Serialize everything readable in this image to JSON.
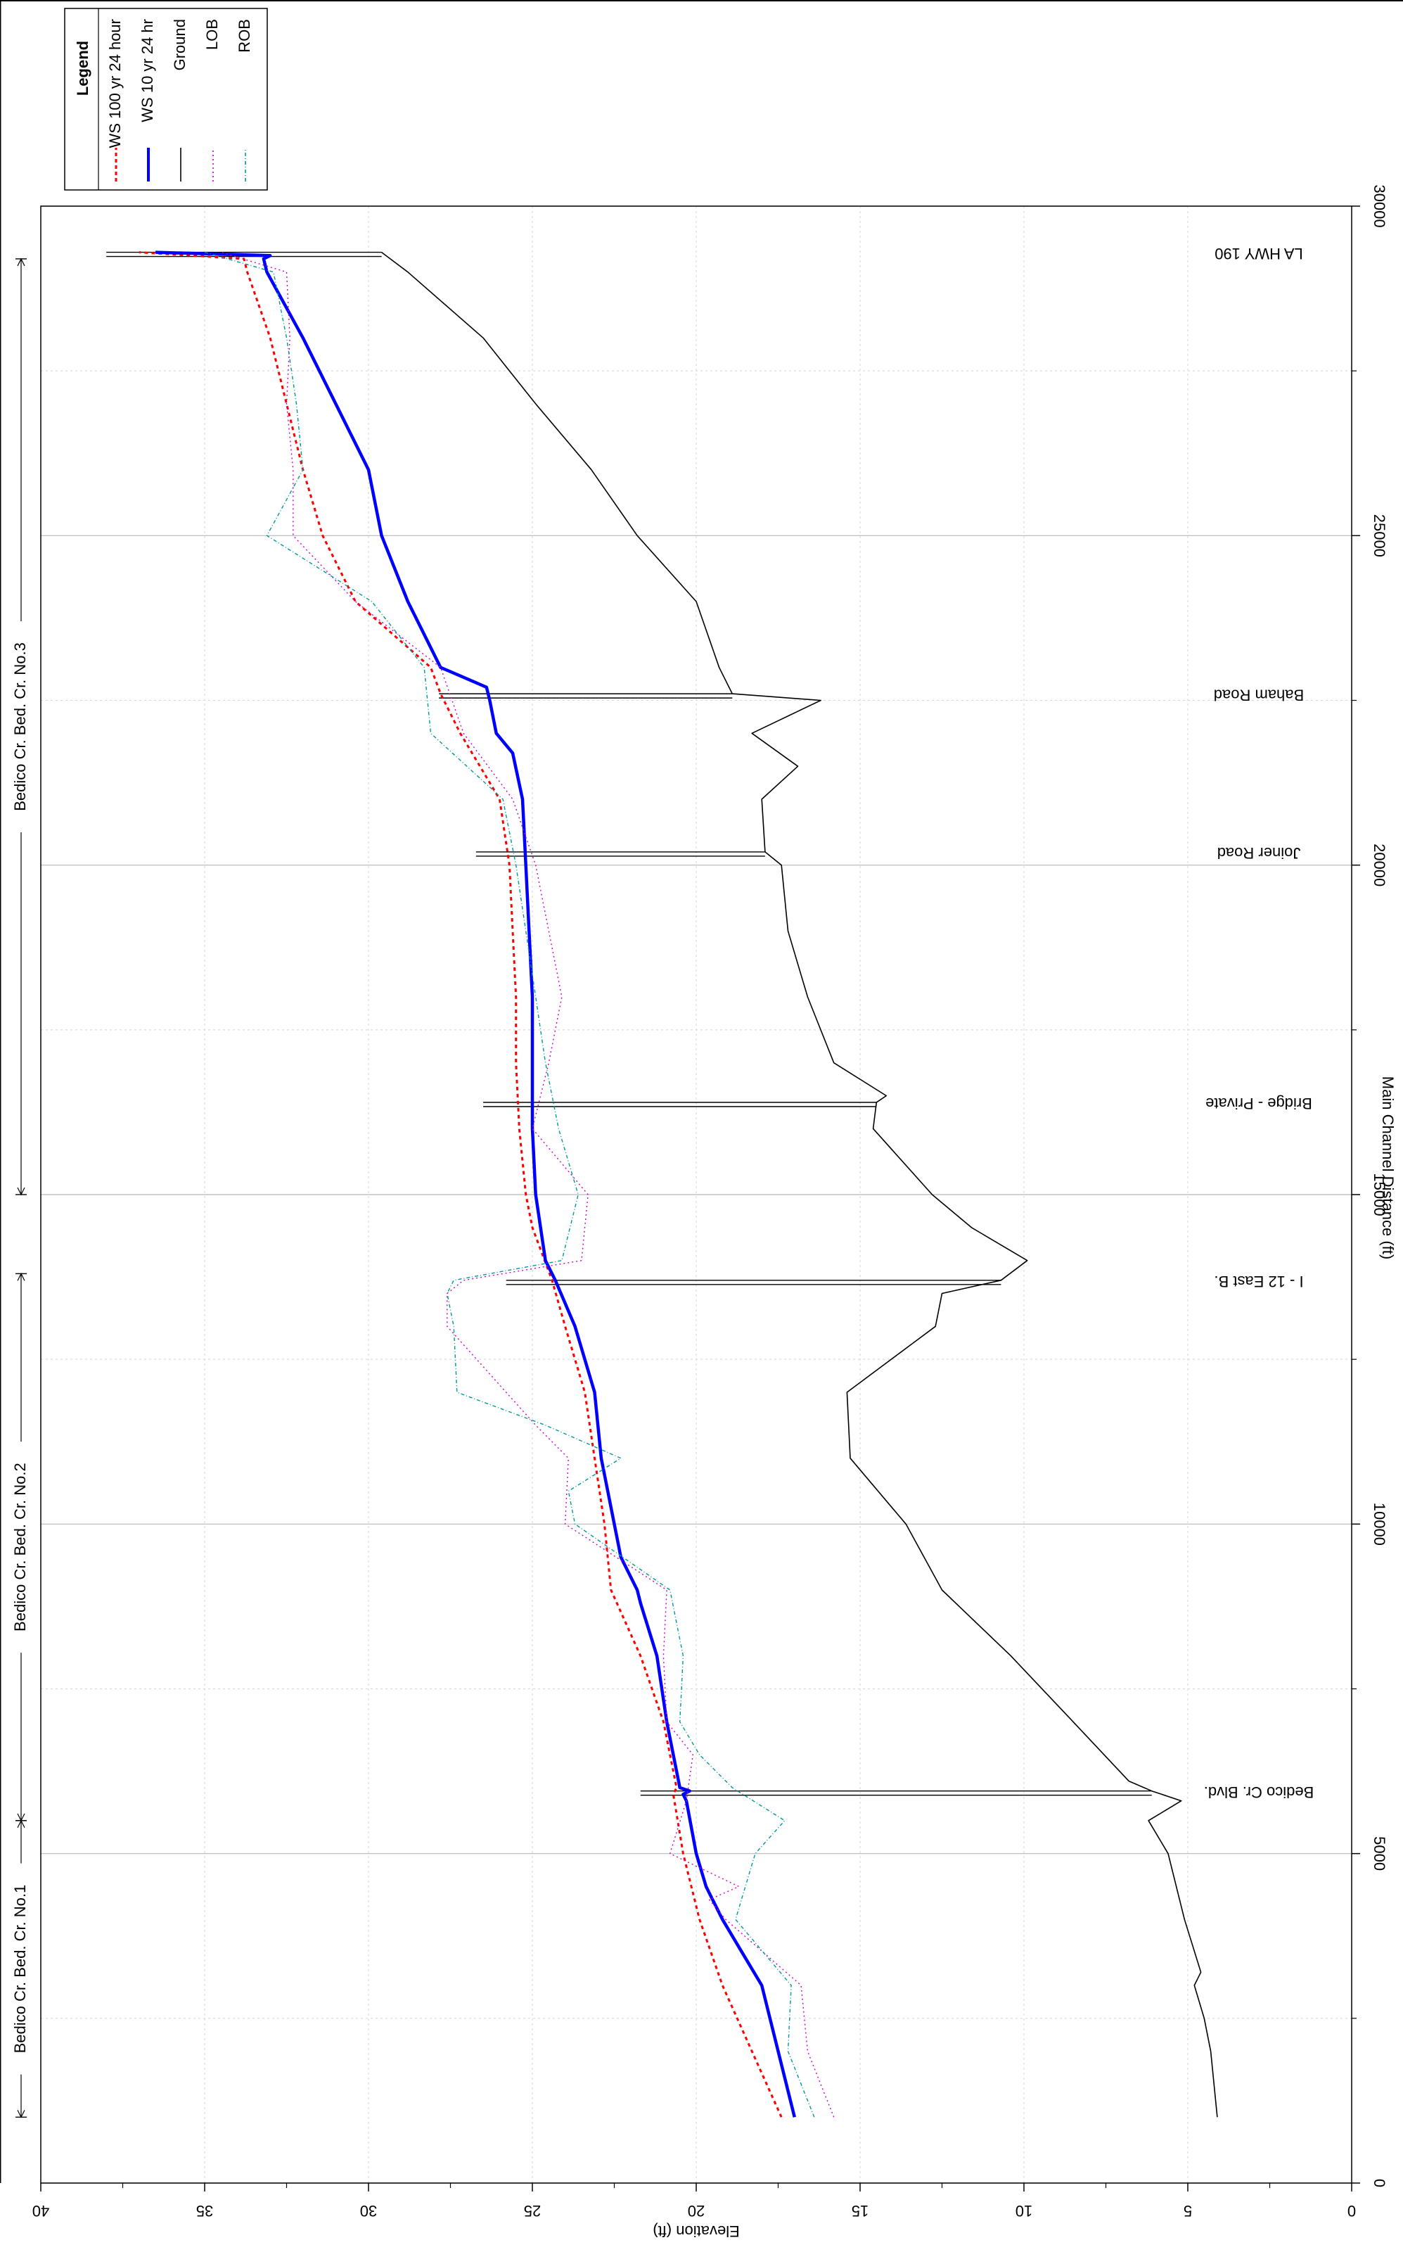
{
  "chart_data": {
    "type": "line",
    "xlabel": "Main Channel Distance (ft)",
    "ylabel": "Elevation (ft)",
    "xlim": [
      0,
      30000
    ],
    "ylim": [
      0,
      40
    ],
    "x_ticks": [
      "0",
      "5000",
      "10000",
      "15000",
      "20000",
      "25000",
      "30000"
    ],
    "y_ticks": [
      "0",
      "5",
      "10",
      "15",
      "20",
      "25",
      "30",
      "35",
      "40"
    ],
    "grid": true,
    "legend_placement": "top-right",
    "legend": {
      "title": "Legend",
      "entries": [
        "WS 100 yr 24 hour",
        "WS 10 yr 24 hr",
        "Ground",
        "LOB",
        "ROB"
      ]
    },
    "reaches": [
      {
        "name": "Bedico Cr. Bed. Cr. No.1",
        "x_start": 1000,
        "x_end": 5500
      },
      {
        "name": "Bedico Cr. Bed. Cr. No.2",
        "x_start": 5500,
        "x_end": 13800
      },
      {
        "name": "Bedico Cr. Bed. Cr. No.3",
        "x_start": 15000,
        "x_end": 29200
      }
    ],
    "structures": [
      {
        "label": "Bedico Cr. Blvd.",
        "x": 5950
      },
      {
        "label": "I - 12 East B.",
        "x": 13700
      },
      {
        "label": "Bridge - Private",
        "x": 16400
      },
      {
        "label": "Joiner Road",
        "x": 20200
      },
      {
        "label": "Baham Road",
        "x": 22600
      },
      {
        "label": "LA HWY 190",
        "x": 29300
      }
    ],
    "series": [
      {
        "name": "WS 100 yr 24 hour",
        "color": "#ff0000",
        "style": "dotted",
        "x": [
          1000,
          2000,
          3000,
          4000,
          5000,
          5900,
          6000,
          7000,
          8000,
          9000,
          10000,
          11000,
          12000,
          13000,
          13700,
          14500,
          15000,
          16000,
          17000,
          18000,
          19000,
          20000,
          21000,
          22000,
          22600,
          23000,
          24000,
          25000,
          26000,
          27000,
          28000,
          29000,
          29200,
          29300
        ],
        "y": [
          17.4,
          18.3,
          19.2,
          19.9,
          20.4,
          20.7,
          20.6,
          21.0,
          21.7,
          22.6,
          22.8,
          23.1,
          23.4,
          24.0,
          24.4,
          25.0,
          25.2,
          25.4,
          25.5,
          25.5,
          25.6,
          25.7,
          26.0,
          27.2,
          27.8,
          28.1,
          30.4,
          31.4,
          32.0,
          32.5,
          33.0,
          33.7,
          33.8,
          37.0
        ]
      },
      {
        "name": "WS 10 yr 24 hr",
        "color": "#0000ff",
        "style": "solid",
        "x": [
          1000,
          2000,
          3000,
          3500,
          4000,
          4500,
          5000,
          5800,
          5900,
          5950,
          6000,
          6500,
          7000,
          8000,
          8800,
          9000,
          9500,
          10000,
          11000,
          12000,
          13000,
          13700,
          14000,
          15000,
          16000,
          17000,
          18000,
          19000,
          20000,
          21000,
          21700,
          22000,
          22500,
          22700,
          23000,
          24000,
          25000,
          26000,
          27000,
          28000,
          29000,
          29200,
          29250,
          29300
        ],
        "y": [
          17.0,
          17.5,
          18.0,
          18.6,
          19.2,
          19.7,
          20.0,
          20.3,
          20.4,
          20.2,
          20.5,
          20.7,
          20.9,
          21.2,
          21.7,
          21.8,
          22.3,
          22.5,
          22.9,
          23.1,
          23.7,
          24.3,
          24.6,
          24.9,
          25.0,
          25.0,
          25.0,
          25.1,
          25.2,
          25.3,
          25.6,
          26.1,
          26.3,
          26.4,
          27.8,
          28.8,
          29.6,
          30.0,
          31.0,
          32.0,
          33.1,
          33.2,
          33.0,
          36.5
        ]
      },
      {
        "name": "Ground",
        "color": "#000000",
        "style": "solid",
        "x": [
          1000,
          2000,
          2500,
          3000,
          3200,
          4000,
          5000,
          5500,
          5800,
          5950,
          6100,
          7000,
          8000,
          9000,
          10000,
          11000,
          12000,
          13000,
          13500,
          13700,
          14000,
          14500,
          15000,
          16000,
          16400,
          16500,
          17000,
          18000,
          19000,
          20000,
          20200,
          21000,
          21500,
          22000,
          22500,
          22600,
          23000,
          24000,
          25000,
          26000,
          27000,
          28000,
          29000,
          29300
        ],
        "y": [
          4.1,
          4.3,
          4.5,
          4.8,
          4.6,
          5.1,
          5.6,
          6.2,
          5.2,
          6.1,
          6.8,
          8.5,
          10.4,
          12.5,
          13.6,
          15.3,
          15.4,
          12.7,
          12.5,
          10.7,
          9.9,
          11.6,
          12.8,
          14.6,
          14.5,
          14.2,
          15.8,
          16.6,
          17.2,
          17.4,
          17.9,
          18.0,
          16.9,
          18.3,
          16.2,
          18.9,
          19.3,
          20.0,
          21.8,
          23.2,
          24.9,
          26.5,
          28.8,
          29.6
        ]
      },
      {
        "name": "LOB",
        "color": "#cc00cc",
        "style": "dotted",
        "x": [
          1000,
          2000,
          3000,
          4000,
          4300,
          4500,
          5000,
          5800,
          6500,
          7000,
          8000,
          9000,
          10000,
          11000,
          11500,
          12000,
          13000,
          13500,
          13700,
          14000,
          15000,
          16000,
          17000,
          18000,
          19000,
          20000,
          21000,
          22000,
          23000,
          24000,
          25000,
          26000,
          27000,
          28000,
          29000,
          29300
        ],
        "y": [
          15.8,
          16.6,
          16.8,
          19.1,
          19.6,
          18.7,
          20.8,
          20.3,
          20.1,
          20.9,
          21.0,
          20.9,
          24.0,
          23.9,
          24.9,
          25.8,
          27.6,
          27.6,
          27.1,
          23.5,
          23.3,
          25.0,
          24.5,
          24.1,
          24.5,
          24.9,
          25.6,
          27.1,
          27.8,
          30.4,
          32.3,
          32.3,
          32.5,
          32.4,
          32.5,
          34.5
        ]
      },
      {
        "name": "ROB",
        "color": "#009999",
        "style": "dotted",
        "x": [
          1000,
          2000,
          3000,
          4000,
          5000,
          5500,
          6000,
          6500,
          7000,
          8000,
          9000,
          10000,
          10500,
          11000,
          11500,
          12000,
          13000,
          13500,
          13700,
          14000,
          15000,
          16000,
          17000,
          18000,
          19000,
          20000,
          21000,
          22000,
          23000,
          24000,
          25000,
          26000,
          27000,
          28000,
          29000,
          29300
        ],
        "y": [
          16.4,
          17.2,
          17.1,
          18.8,
          18.2,
          17.3,
          18.9,
          19.9,
          20.5,
          20.4,
          20.8,
          23.7,
          23.9,
          22.3,
          24.6,
          27.3,
          27.4,
          27.6,
          27.4,
          24.1,
          23.6,
          24.2,
          24.6,
          24.9,
          25.2,
          25.5,
          25.9,
          28.1,
          28.3,
          29.9,
          33.1,
          32.0,
          32.2,
          32.5,
          32.9,
          35.0
        ]
      }
    ]
  }
}
